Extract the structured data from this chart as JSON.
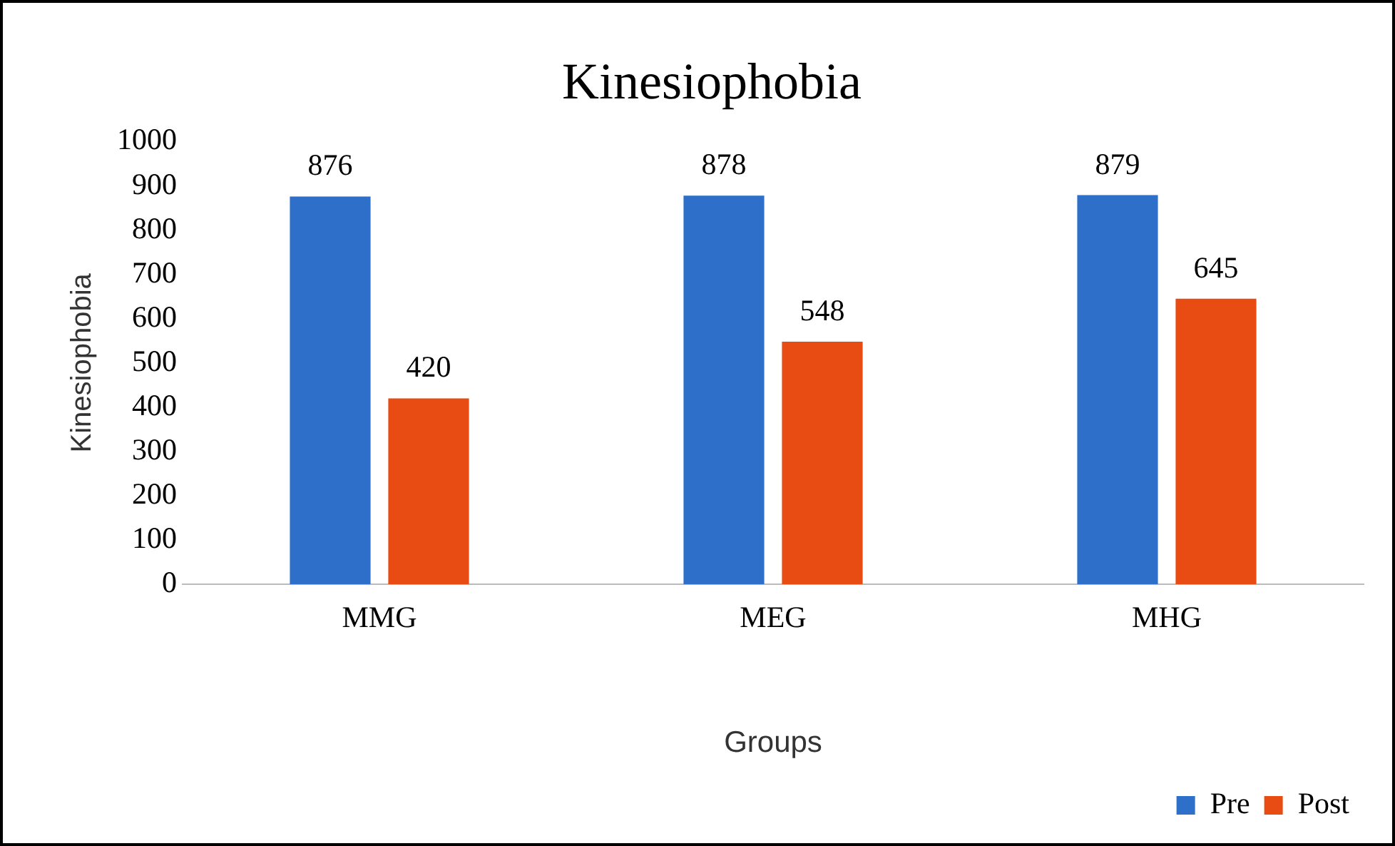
{
  "chart_data": {
    "type": "bar",
    "title": "Kinesiophobia",
    "xlabel": "Groups",
    "ylabel": "Kinesiophobia",
    "categories": [
      "MMG",
      "MEG",
      "MHG"
    ],
    "series": [
      {
        "name": "Pre",
        "color": "#2e6fca",
        "values": [
          876,
          878,
          879
        ]
      },
      {
        "name": "Post",
        "color": "#e84c12",
        "values": [
          420,
          548,
          645
        ]
      }
    ],
    "ylim": [
      0,
      1000
    ],
    "yticks": [
      0,
      100,
      200,
      300,
      400,
      500,
      600,
      700,
      800,
      900,
      1000
    ],
    "grid": false,
    "legend": "bottom right",
    "data_labels": true
  }
}
